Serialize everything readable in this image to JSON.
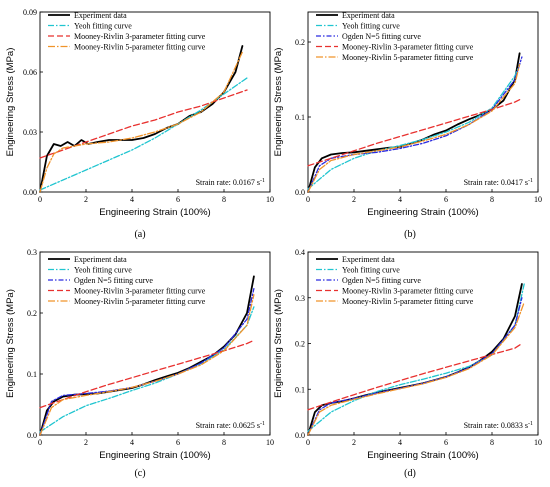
{
  "chart_data": [
    {
      "type": "line",
      "panel_label": "(a)",
      "xlabel": "Engineering Strain (100%)",
      "ylabel": "Engineering Stress (MPa)",
      "xlim": [
        0,
        10
      ],
      "ylim": [
        0,
        0.09
      ],
      "xticks": [
        0,
        2,
        4,
        6,
        8,
        10
      ],
      "xtick_labels": [
        "0",
        "2",
        "4",
        "6",
        "8",
        "10"
      ],
      "yticks": [
        0,
        0.03,
        0.06,
        0.09
      ],
      "ytick_labels": [
        "0.00",
        "0.03",
        "0.06",
        "0.09"
      ],
      "annotation": {
        "text": "Strain rate: 0.0167 s",
        "sup": "-1"
      },
      "series": [
        {
          "name": "Experiment data",
          "color": "#000000",
          "dash": "",
          "width": 1.8,
          "x": [
            0,
            0.3,
            0.6,
            0.9,
            1.2,
            1.5,
            1.8,
            2.1,
            2.5,
            3,
            3.5,
            4,
            4.5,
            5,
            5.5,
            6,
            6.5,
            7,
            7.5,
            8,
            8.5,
            8.8
          ],
          "y": [
            0,
            0.018,
            0.024,
            0.023,
            0.025,
            0.023,
            0.026,
            0.024,
            0.025,
            0.026,
            0.026,
            0.026,
            0.027,
            0.029,
            0.032,
            0.034,
            0.038,
            0.04,
            0.044,
            0.05,
            0.06,
            0.073
          ]
        },
        {
          "name": "Yeoh fitting curve",
          "color": "#20c5d0",
          "dash": "6,2,1.5,2",
          "width": 1.3,
          "x": [
            0,
            1,
            2,
            3,
            4,
            5,
            6,
            7,
            8,
            9
          ],
          "y": [
            0.001,
            0.006,
            0.011,
            0.016,
            0.021,
            0.027,
            0.034,
            0.041,
            0.049,
            0.057
          ]
        },
        {
          "name": "Mooney-Rivlin 3-parameter fitting curve",
          "color": "#e8312f",
          "dash": "6,3",
          "width": 1.3,
          "x": [
            0,
            1,
            2,
            3,
            4,
            5,
            6,
            7,
            8,
            9
          ],
          "y": [
            0.017,
            0.021,
            0.025,
            0.029,
            0.033,
            0.036,
            0.04,
            0.043,
            0.047,
            0.051
          ]
        },
        {
          "name": "Mooney-Rivlin 5-parameter fitting curve",
          "color": "#f0932a",
          "dash": "7,2,1.5,2",
          "width": 1.3,
          "x": [
            0,
            0.3,
            0.6,
            1,
            2,
            3,
            4,
            5,
            6,
            7,
            8,
            8.8
          ],
          "y": [
            0,
            0.012,
            0.019,
            0.022,
            0.024,
            0.025,
            0.027,
            0.03,
            0.034,
            0.04,
            0.05,
            0.07
          ]
        }
      ]
    },
    {
      "type": "line",
      "panel_label": "(b)",
      "xlabel": "Engineering Strain (100%)",
      "ylabel": "Engineering Stress (MPa)",
      "xlim": [
        0,
        10
      ],
      "ylim": [
        0,
        0.24
      ],
      "xticks": [
        0,
        2,
        4,
        6,
        8,
        10
      ],
      "xtick_labels": [
        "0",
        "2",
        "4",
        "6",
        "8",
        "10"
      ],
      "yticks": [
        0,
        0.1,
        0.2
      ],
      "ytick_labels": [
        "0.0",
        "0.1",
        "0.2"
      ],
      "annotation": {
        "text": "Strain rate: 0.0417 s",
        "sup": "-1"
      },
      "series": [
        {
          "name": "Experiment data",
          "color": "#000000",
          "dash": "",
          "width": 1.8,
          "x": [
            0,
            0.3,
            0.6,
            1,
            1.5,
            2,
            2.5,
            3,
            3.5,
            4,
            4.5,
            5,
            5.5,
            6,
            6.5,
            7,
            7.5,
            8,
            8.5,
            9,
            9.2
          ],
          "y": [
            0,
            0.033,
            0.045,
            0.05,
            0.052,
            0.053,
            0.055,
            0.057,
            0.059,
            0.06,
            0.065,
            0.07,
            0.077,
            0.082,
            0.09,
            0.097,
            0.103,
            0.11,
            0.122,
            0.15,
            0.185
          ]
        },
        {
          "name": "Yeoh fitting curve",
          "color": "#20c5d0",
          "dash": "6,2,1.5,2",
          "width": 1.3,
          "x": [
            0,
            1,
            2,
            3,
            4,
            5,
            6,
            7,
            8,
            9,
            9.2
          ],
          "y": [
            0.004,
            0.03,
            0.045,
            0.055,
            0.062,
            0.07,
            0.08,
            0.093,
            0.112,
            0.155,
            0.17
          ]
        },
        {
          "name": "Ogden N=5 fitting curve",
          "color": "#2a2ae0",
          "dash": "5,2,1.5,2",
          "width": 1.3,
          "x": [
            0,
            0.5,
            1,
            2,
            3,
            4,
            5,
            6,
            7,
            8,
            9,
            9.3
          ],
          "y": [
            0,
            0.035,
            0.045,
            0.05,
            0.053,
            0.058,
            0.065,
            0.075,
            0.09,
            0.11,
            0.15,
            0.18
          ]
        },
        {
          "name": "Mooney-Rivlin 3-parameter fitting curve",
          "color": "#e8312f",
          "dash": "6,3",
          "width": 1.3,
          "x": [
            0,
            1,
            2,
            3,
            4,
            5,
            6,
            7,
            8,
            9,
            9.2
          ],
          "y": [
            0.035,
            0.045,
            0.055,
            0.065,
            0.074,
            0.083,
            0.092,
            0.101,
            0.11,
            0.12,
            0.123
          ]
        },
        {
          "name": "Mooney-Rivlin 5-parameter fitting curve",
          "color": "#f0932a",
          "dash": "7,2,1.5,2",
          "width": 1.3,
          "x": [
            0,
            0.5,
            1,
            2,
            3,
            4,
            5,
            6,
            7,
            8,
            9,
            9.2
          ],
          "y": [
            0,
            0.03,
            0.042,
            0.05,
            0.055,
            0.06,
            0.068,
            0.077,
            0.09,
            0.108,
            0.145,
            0.17
          ]
        }
      ]
    },
    {
      "type": "line",
      "panel_label": "(c)",
      "xlabel": "Engineering Strain (100%)",
      "ylabel": "Engineering Stress (MPa)",
      "xlim": [
        0,
        10
      ],
      "ylim": [
        0,
        0.3
      ],
      "xticks": [
        0,
        2,
        4,
        6,
        8,
        10
      ],
      "xtick_labels": [
        "0",
        "2",
        "4",
        "6",
        "8",
        "10"
      ],
      "yticks": [
        0,
        0.1,
        0.2,
        0.3
      ],
      "ytick_labels": [
        "0.0",
        "0.1",
        "0.2",
        "0.3"
      ],
      "annotation": {
        "text": "Strain rate: 0.0625 s",
        "sup": "-1"
      },
      "series": [
        {
          "name": "Experiment data",
          "color": "#000000",
          "dash": "",
          "width": 1.8,
          "x": [
            0,
            0.3,
            0.6,
            1,
            1.5,
            2,
            2.5,
            3,
            3.5,
            4,
            4.5,
            5,
            5.5,
            6,
            6.5,
            7,
            7.5,
            8,
            8.5,
            9,
            9.3
          ],
          "y": [
            0,
            0.04,
            0.055,
            0.063,
            0.066,
            0.067,
            0.068,
            0.071,
            0.074,
            0.077,
            0.083,
            0.09,
            0.096,
            0.102,
            0.11,
            0.12,
            0.13,
            0.145,
            0.165,
            0.2,
            0.26
          ]
        },
        {
          "name": "Yeoh fitting curve",
          "color": "#20c5d0",
          "dash": "6,2,1.5,2",
          "width": 1.3,
          "x": [
            0,
            1,
            2,
            3,
            4,
            5,
            6,
            7,
            8,
            9,
            9.3
          ],
          "y": [
            0.005,
            0.03,
            0.048,
            0.06,
            0.073,
            0.085,
            0.1,
            0.117,
            0.14,
            0.18,
            0.21
          ]
        },
        {
          "name": "Ogden N=5 fitting curve",
          "color": "#2a2ae0",
          "dash": "5,2,1.5,2",
          "width": 1.3,
          "x": [
            0,
            0.5,
            1,
            2,
            3,
            4,
            5,
            6,
            7,
            8,
            9,
            9.3
          ],
          "y": [
            0,
            0.055,
            0.065,
            0.068,
            0.072,
            0.078,
            0.088,
            0.1,
            0.118,
            0.143,
            0.19,
            0.24
          ]
        },
        {
          "name": "Mooney-Rivlin 3-parameter fitting curve",
          "color": "#e8312f",
          "dash": "6,3",
          "width": 1.3,
          "x": [
            0,
            1,
            2,
            3,
            4,
            5,
            6,
            7,
            8,
            9,
            9.3
          ],
          "y": [
            0.045,
            0.058,
            0.071,
            0.083,
            0.094,
            0.105,
            0.116,
            0.127,
            0.138,
            0.15,
            0.155
          ]
        },
        {
          "name": "Mooney-Rivlin 5-parameter fitting curve",
          "color": "#f0932a",
          "dash": "7,2,1.5,2",
          "width": 1.3,
          "x": [
            0,
            0.5,
            1,
            2,
            3,
            4,
            5,
            6,
            7,
            8,
            9,
            9.3
          ],
          "y": [
            0,
            0.045,
            0.058,
            0.065,
            0.071,
            0.078,
            0.088,
            0.1,
            0.115,
            0.138,
            0.18,
            0.23
          ]
        }
      ]
    },
    {
      "type": "line",
      "panel_label": "(d)",
      "xlabel": "Engineering Strain (100%)",
      "ylabel": "Engineering Stress (MPa)",
      "xlim": [
        0,
        10
      ],
      "ylim": [
        0,
        0.4
      ],
      "xticks": [
        0,
        2,
        4,
        6,
        8,
        10
      ],
      "xtick_labels": [
        "0",
        "2",
        "4",
        "6",
        "8",
        "10"
      ],
      "yticks": [
        0,
        0.1,
        0.2,
        0.3,
        0.4
      ],
      "ytick_labels": [
        "0.0",
        "0.1",
        "0.2",
        "0.3",
        "0.4"
      ],
      "annotation": {
        "text": "Strain rate: 0.0833 s",
        "sup": "-1"
      },
      "series": [
        {
          "name": "Experiment data",
          "color": "#000000",
          "dash": "",
          "width": 1.8,
          "x": [
            0,
            0.3,
            0.6,
            1,
            1.5,
            2,
            2.5,
            3,
            3.5,
            4,
            4.5,
            5,
            5.5,
            6,
            6.5,
            7,
            7.5,
            8,
            8.5,
            9,
            9.3
          ],
          "y": [
            0,
            0.05,
            0.065,
            0.07,
            0.074,
            0.08,
            0.087,
            0.093,
            0.098,
            0.103,
            0.108,
            0.113,
            0.12,
            0.127,
            0.137,
            0.148,
            0.163,
            0.182,
            0.21,
            0.26,
            0.33
          ]
        },
        {
          "name": "Yeoh fitting curve",
          "color": "#20c5d0",
          "dash": "6,2,1.5,2",
          "width": 1.3,
          "x": [
            0,
            1,
            2,
            3,
            4,
            5,
            6,
            7,
            8,
            9,
            9.4
          ],
          "y": [
            0.008,
            0.05,
            0.075,
            0.095,
            0.11,
            0.122,
            0.135,
            0.15,
            0.175,
            0.24,
            0.33
          ]
        },
        {
          "name": "Ogden N=5 fitting curve",
          "color": "#2a2ae0",
          "dash": "5,2,1.5,2",
          "width": 1.3,
          "x": [
            0,
            0.5,
            1,
            2,
            3,
            4,
            5,
            6,
            7,
            8,
            9,
            9.3
          ],
          "y": [
            0,
            0.055,
            0.07,
            0.08,
            0.092,
            0.102,
            0.113,
            0.127,
            0.147,
            0.178,
            0.24,
            0.3
          ]
        },
        {
          "name": "Mooney-Rivlin 3-parameter fitting curve",
          "color": "#e8312f",
          "dash": "6,3",
          "width": 1.3,
          "x": [
            0,
            1,
            2,
            3,
            4,
            5,
            6,
            7,
            8,
            9,
            9.3
          ],
          "y": [
            0.055,
            0.072,
            0.088,
            0.104,
            0.119,
            0.134,
            0.148,
            0.162,
            0.176,
            0.19,
            0.2
          ]
        },
        {
          "name": "Mooney-Rivlin 5-parameter fitting curve",
          "color": "#f0932a",
          "dash": "7,2,1.5,2",
          "width": 1.3,
          "x": [
            0,
            0.5,
            1,
            2,
            3,
            4,
            5,
            6,
            7,
            8,
            9,
            9.4
          ],
          "y": [
            0,
            0.05,
            0.065,
            0.078,
            0.09,
            0.101,
            0.112,
            0.126,
            0.145,
            0.175,
            0.235,
            0.29
          ]
        }
      ]
    }
  ]
}
